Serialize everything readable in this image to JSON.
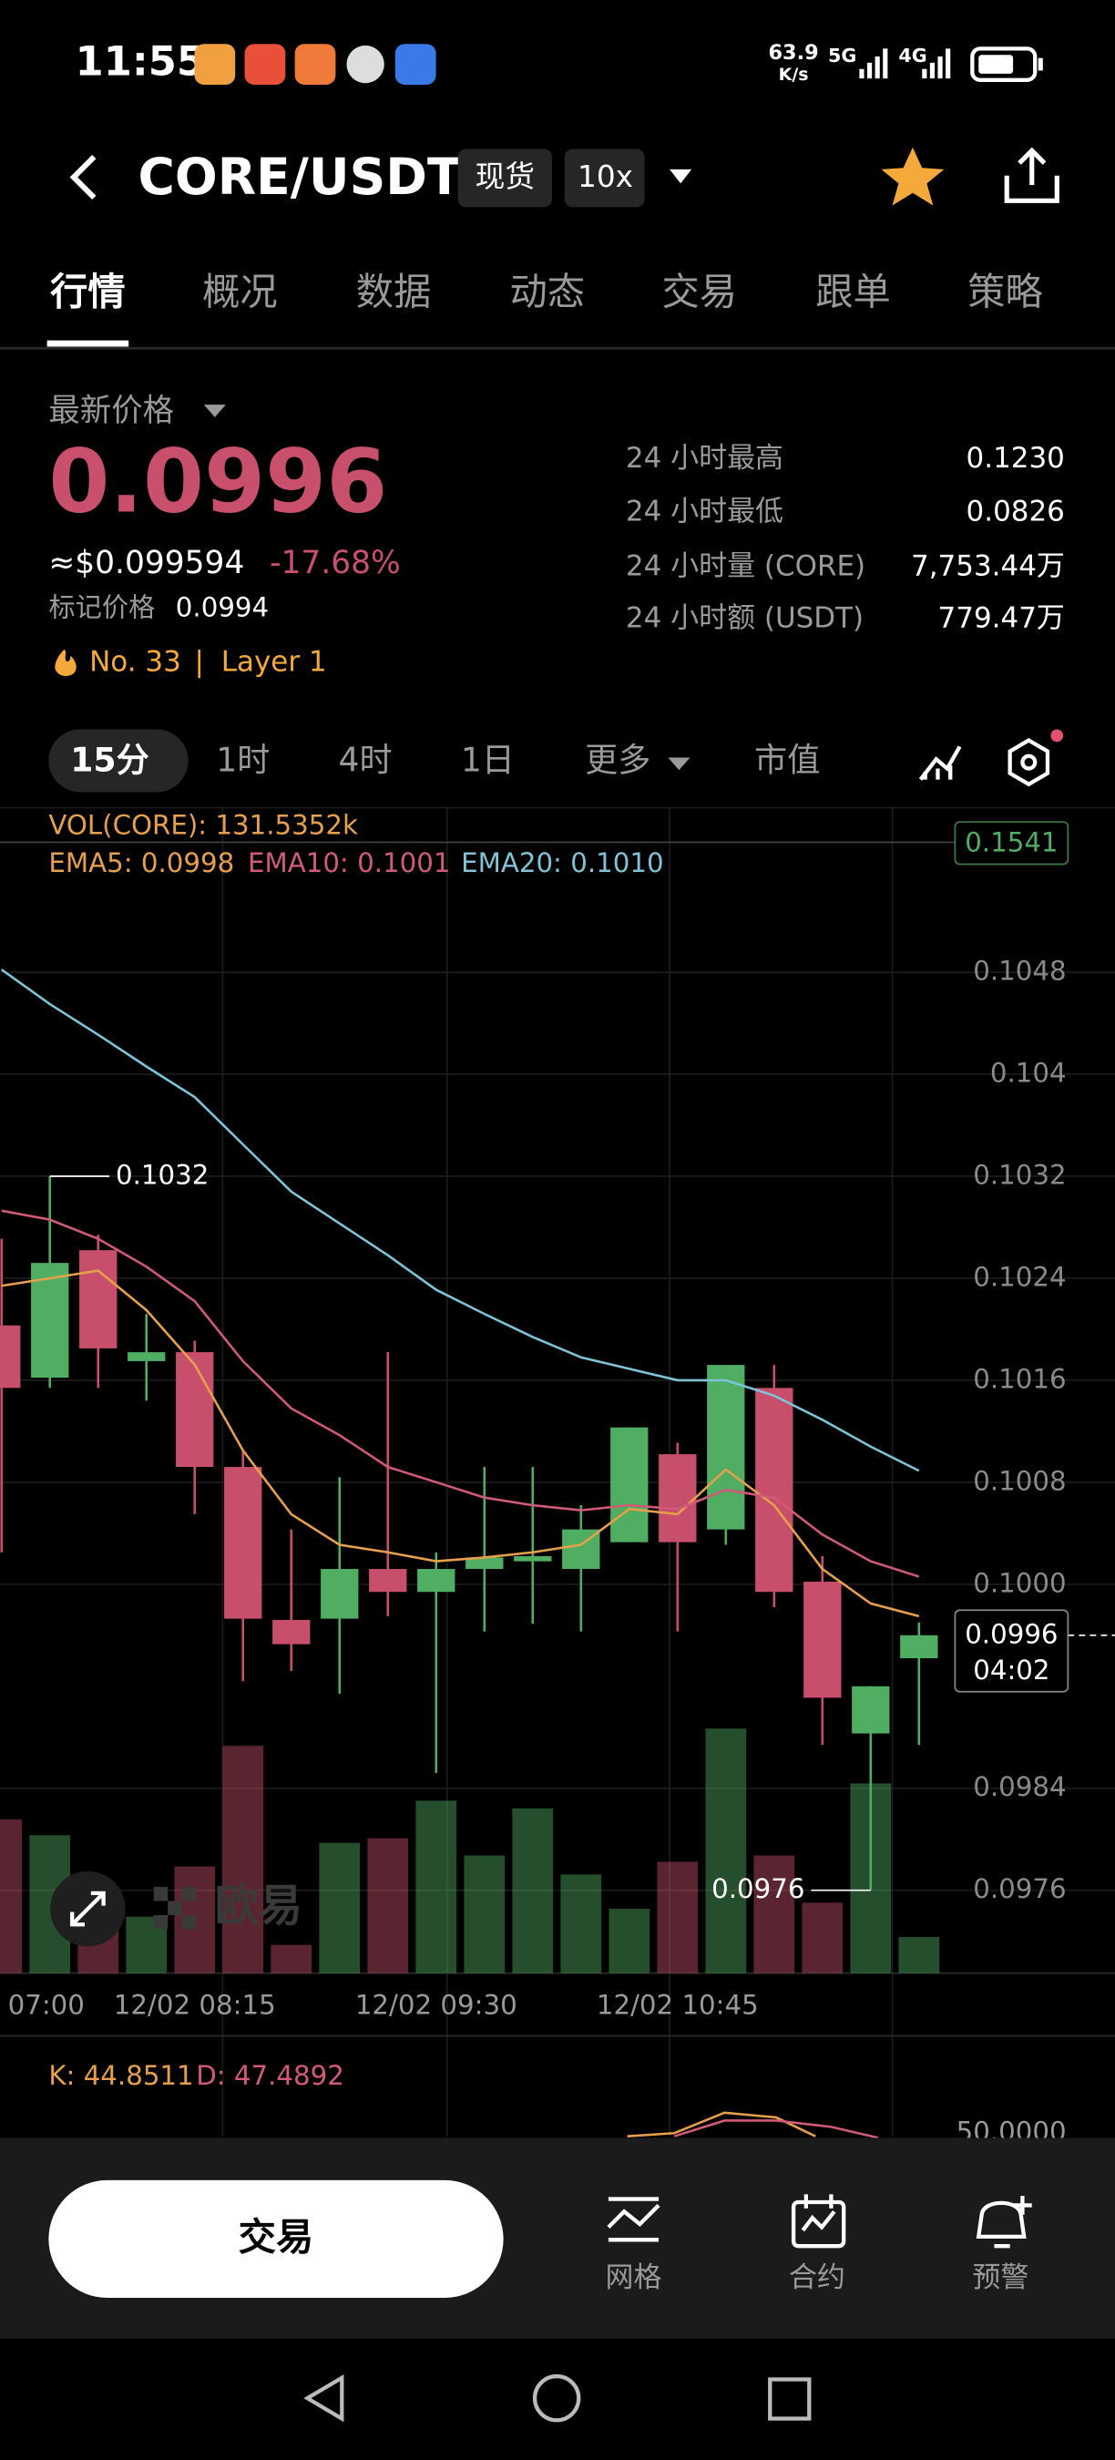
{
  "status_bar": {
    "time": "11:55",
    "net_speed": "63.9",
    "net_unit": "K/s",
    "signal1": "5G",
    "signal2": "4G"
  },
  "header": {
    "pair": "CORE/USDT",
    "badge1": "现货",
    "badge2": "10x"
  },
  "tabs": [
    "行情",
    "概况",
    "数据",
    "动态",
    "交易",
    "跟单",
    "策略"
  ],
  "price": {
    "label": "最新价格",
    "last": "0.0996",
    "usd": "≈$0.099594",
    "change": "-17.68%",
    "mark_label": "标记价格",
    "mark": "0.0994",
    "rank": "No. 33",
    "separator": "|",
    "layer": "Layer 1"
  },
  "stats": [
    [
      "24 小时最高",
      "0.1230"
    ],
    [
      "24 小时最低",
      "0.0826"
    ],
    [
      "24 小时量 (CORE)",
      "7,753.44万"
    ],
    [
      "24 小时额 (USDT)",
      "779.47万"
    ]
  ],
  "intervals": [
    "15分",
    "1时",
    "4时",
    "1日",
    "更多",
    "市值"
  ],
  "chart_data": {
    "type": "candlestick",
    "categories": [
      "07:00",
      null,
      null,
      null,
      "12/02 08:15",
      null,
      null,
      null,
      null,
      "12/02 09:30",
      null,
      null,
      null,
      null,
      "12/02 10:45",
      null,
      null,
      null,
      null,
      null
    ],
    "open": [
      0.10203,
      0.10162,
      0.10262,
      0.10175,
      0.10182,
      0.10092,
      0.09972,
      0.09973,
      0.10012,
      0.09994,
      0.10012,
      0.10018,
      0.10012,
      0.10033,
      0.10102,
      0.10043,
      0.10154,
      0.10002,
      0.09883,
      0.09942
    ],
    "close": [
      0.10154,
      0.10252,
      0.10185,
      0.10182,
      0.10092,
      0.09973,
      0.09953,
      0.10012,
      0.09994,
      0.10012,
      0.10021,
      0.10022,
      0.10043,
      0.10123,
      0.10033,
      0.10172,
      0.09994,
      0.09911,
      0.0992,
      0.0996
    ],
    "high": [
      0.10271,
      0.1032,
      0.10274,
      0.10212,
      0.10191,
      0.10105,
      0.10043,
      0.10084,
      0.10182,
      0.10025,
      0.10092,
      0.10092,
      0.10062,
      0.10123,
      0.10111,
      0.10172,
      0.10172,
      0.10022,
      0.0992,
      0.0997
    ],
    "low": [
      0.10025,
      0.10154,
      0.10154,
      0.10144,
      0.10055,
      0.09924,
      0.09932,
      0.09914,
      0.09975,
      0.09852,
      0.09963,
      0.09969,
      0.09963,
      0.10033,
      0.09963,
      0.10031,
      0.09982,
      0.09874,
      0.0976,
      0.09874
    ],
    "volume": [
      561,
      503,
      303,
      206,
      389,
      829,
      103,
      475,
      492,
      629,
      429,
      601,
      360,
      235,
      406,
      892,
      429,
      257,
      692,
      131.5352
    ],
    "series": [
      {
        "color": "#e6a04c",
        "values": [
          0.10234,
          0.1024,
          0.10246,
          0.10215,
          0.10172,
          0.10105,
          0.10055,
          0.10031,
          0.10025,
          0.10018,
          0.10021,
          0.10025,
          0.10031,
          0.10059,
          0.10055,
          0.1009,
          0.10062,
          0.10012,
          0.09985,
          0.09975
        ]
      },
      {
        "color": "#d05a78",
        "values": [
          0.10293,
          0.10286,
          0.10271,
          0.10249,
          0.10222,
          0.10175,
          0.10138,
          0.10117,
          0.10092,
          0.1008,
          0.10068,
          0.10062,
          0.10058,
          0.10062,
          0.10059,
          0.10074,
          0.10068,
          0.10039,
          0.10018,
          0.10006
        ]
      },
      {
        "color": "#7ec3d8",
        "values": [
          0.10482,
          0.10455,
          0.10431,
          0.10406,
          0.10382,
          0.10345,
          0.10308,
          0.10283,
          0.10258,
          0.10231,
          0.10212,
          0.10194,
          0.10178,
          0.10169,
          0.1016,
          0.1016,
          0.10148,
          0.10129,
          0.10108,
          0.10089
        ]
      }
    ],
    "legend": [
      {
        "label": "VOL(CORE): 131.5352k",
        "color": "#e6a04c"
      },
      {
        "label": "EMA5: 0.0998",
        "color": "#e6a04c"
      },
      {
        "label": "EMA10: 0.1001",
        "color": "#d05a78"
      },
      {
        "label": "EMA20: 0.1010",
        "color": "#7ec3d8"
      }
    ],
    "up_color": "#4fae62",
    "down_color": "#c84f6b",
    "ylim": [
      0.09695,
      0.10609
    ],
    "yticks": [
      0.1048,
      0.104,
      0.1032,
      0.1024,
      0.1016,
      0.1008,
      {
        "value": 0.1,
        "label": "0.1000"
      },
      0.0984,
      0.0976
    ],
    "top_label": "0.1541",
    "countdown": "04:02"
  },
  "kdj": {
    "k": "K: 44.8511",
    "d": "D: 47.4892",
    "level": "50.0000"
  },
  "watermark": "欧易",
  "bottom": {
    "trade": "交易",
    "grid": "网格",
    "contract": "合约",
    "alert": "预警"
  }
}
